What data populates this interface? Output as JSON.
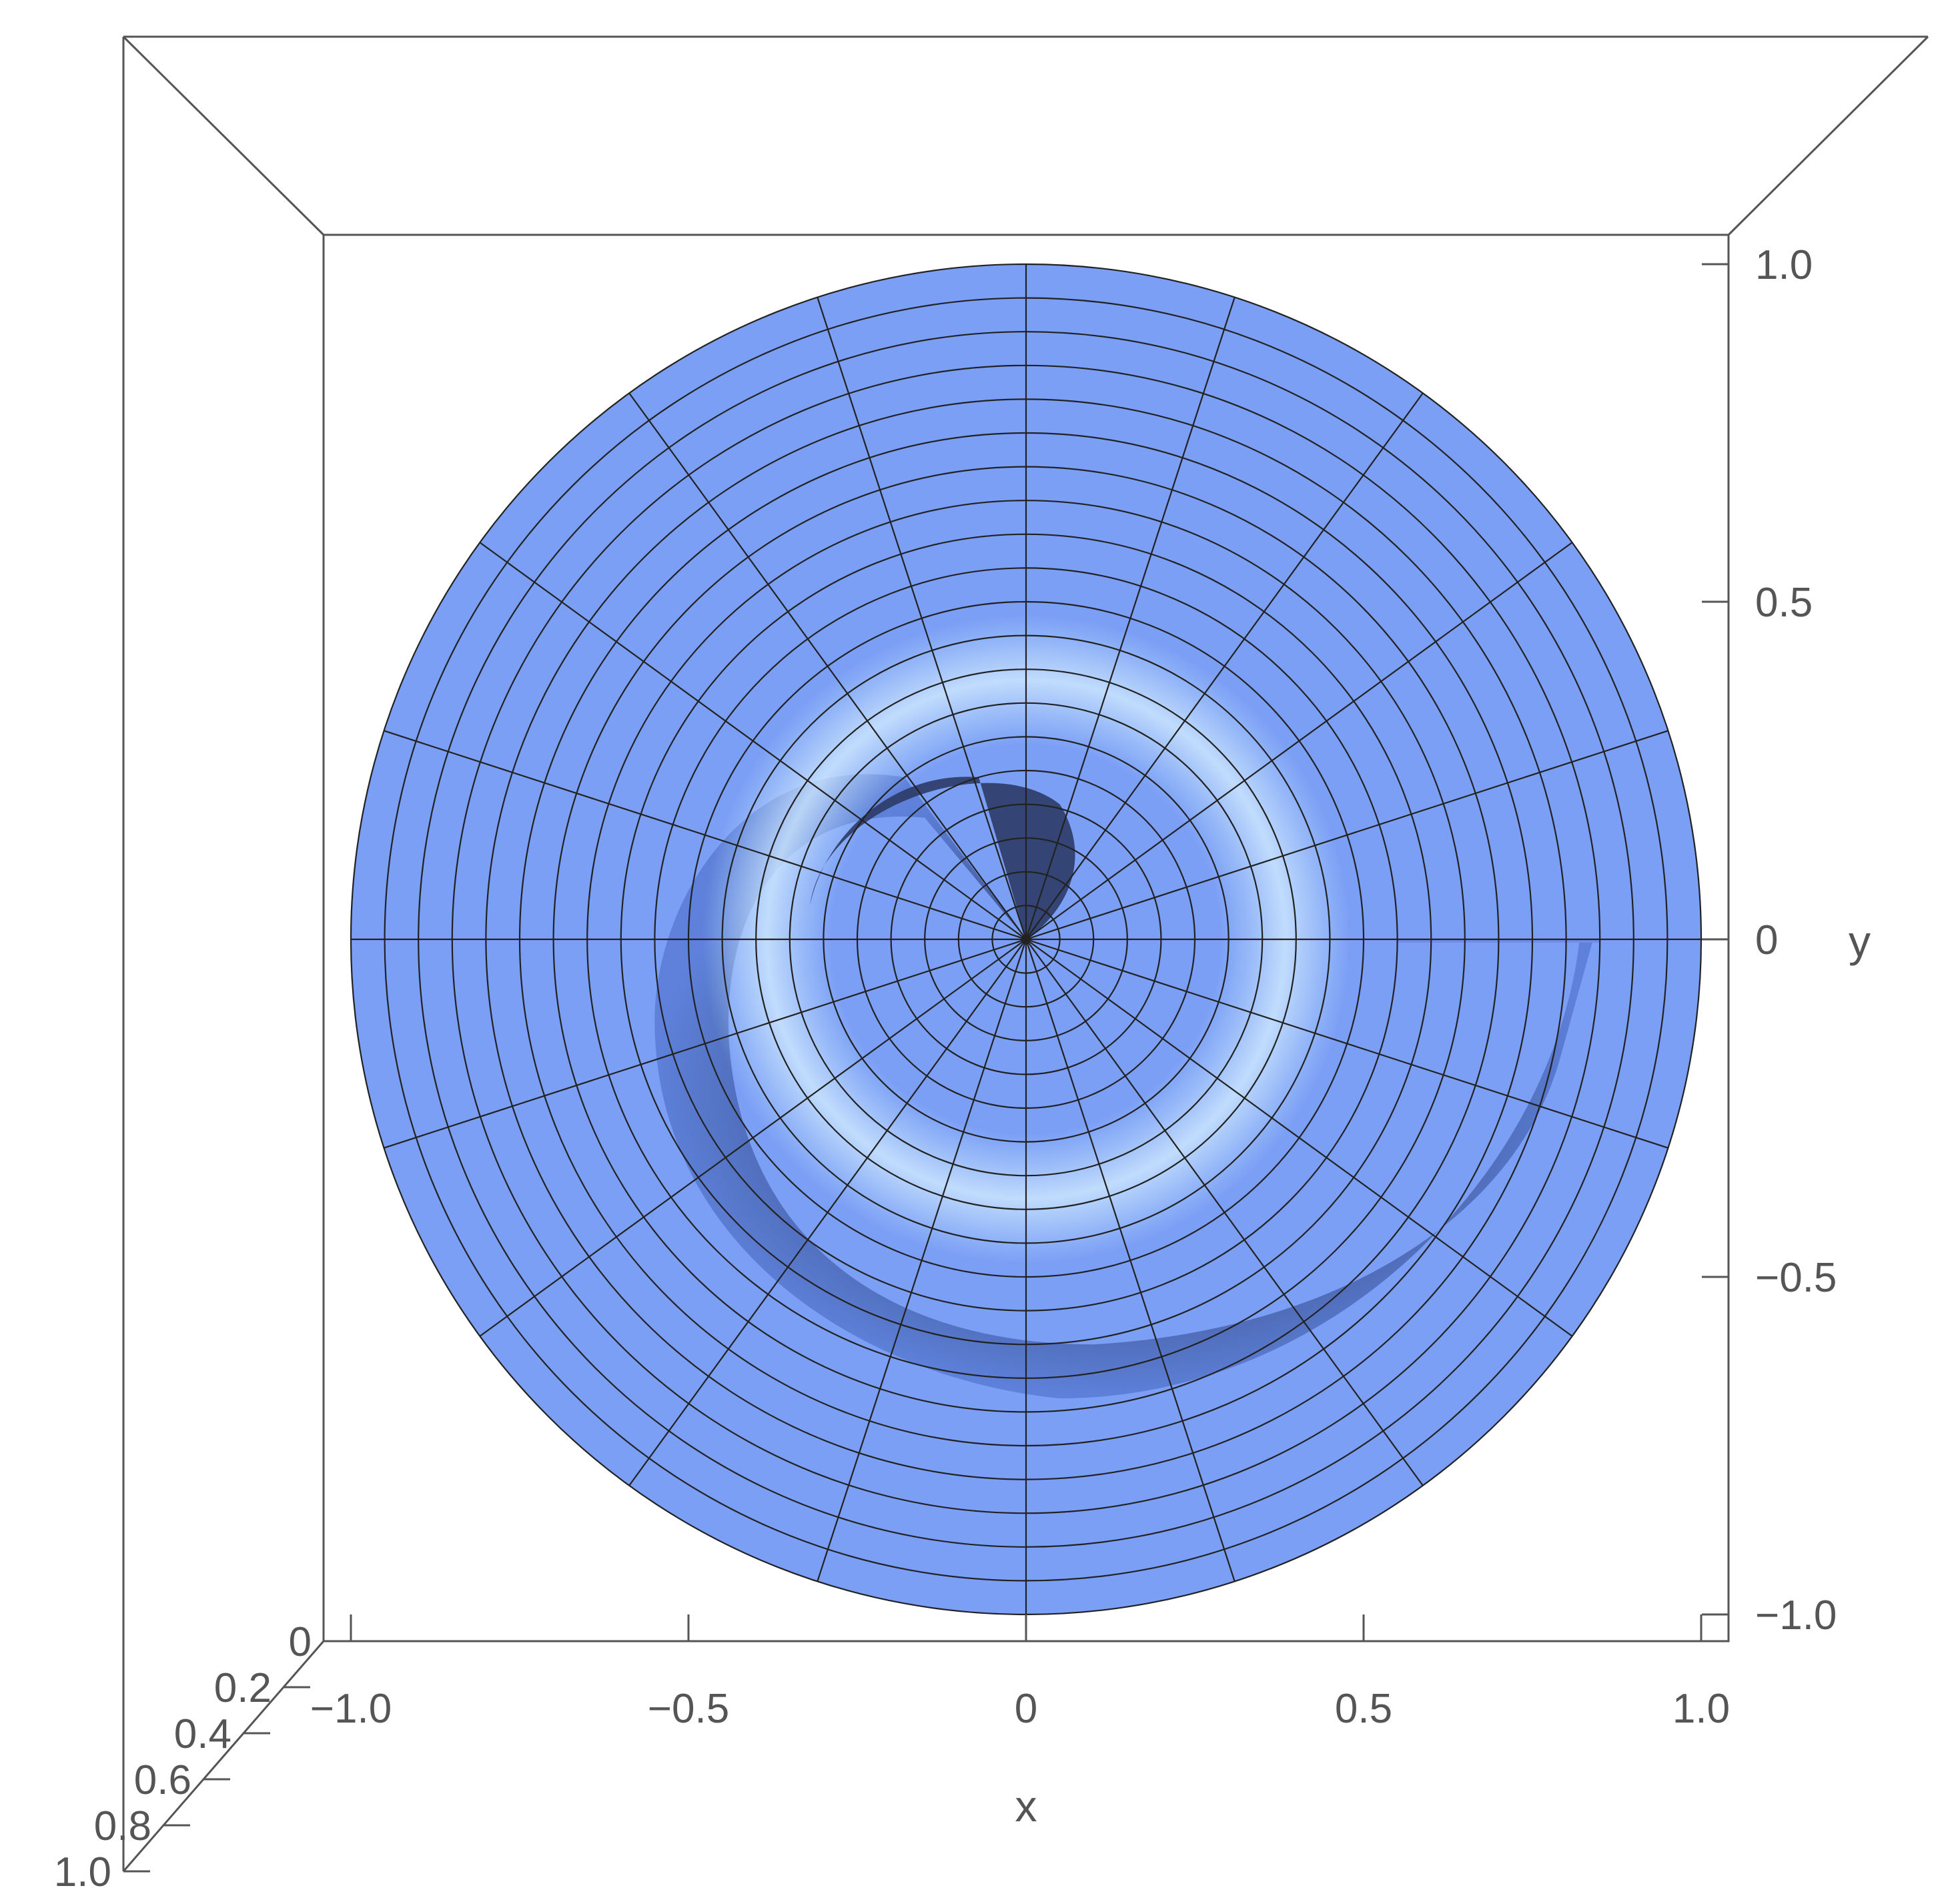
{
  "chart_data": {
    "type": "surface3d",
    "view": "top-down",
    "mesh": "polar",
    "surface_color": "#7b9ff5",
    "shadow_color": "#2c3a66",
    "highlight_color": "#c8e8ff",
    "x_axis": {
      "label": "x",
      "range": [
        -1.0,
        1.0
      ],
      "ticks": [
        {
          "value": -1.0,
          "label": "−1.0"
        },
        {
          "value": -0.5,
          "label": "−0.5"
        },
        {
          "value": 0,
          "label": "0"
        },
        {
          "value": 0.5,
          "label": "0.5"
        },
        {
          "value": 1.0,
          "label": "1.0"
        }
      ]
    },
    "y_axis": {
      "label": "y",
      "range": [
        -1.0,
        1.0
      ],
      "ticks": [
        {
          "value": 1.0,
          "label": "1.0"
        },
        {
          "value": 0.5,
          "label": "0.5"
        },
        {
          "value": 0,
          "label": "0"
        },
        {
          "value": -0.5,
          "label": "−0.5"
        },
        {
          "value": -1.0,
          "label": "−1.0"
        }
      ]
    },
    "z_axis": {
      "label": "",
      "range": [
        0,
        1.0
      ],
      "ticks": [
        {
          "value": 0,
          "label": "0"
        },
        {
          "value": 0.2,
          "label": "0.2"
        },
        {
          "value": 0.4,
          "label": "0.4"
        },
        {
          "value": 0.6,
          "label": "0.6"
        },
        {
          "value": 0.8,
          "label": "0.8"
        },
        {
          "value": 1.0,
          "label": "1.0"
        }
      ]
    },
    "mesh_radial_lines": 20,
    "mesh_rings": [
      0.05,
      0.1,
      0.15,
      0.2,
      0.25,
      0.3,
      0.35,
      0.4,
      0.45,
      0.5,
      0.55,
      0.6,
      0.65,
      0.7,
      0.75,
      0.8,
      0.85,
      0.9,
      0.95,
      1.0
    ]
  }
}
